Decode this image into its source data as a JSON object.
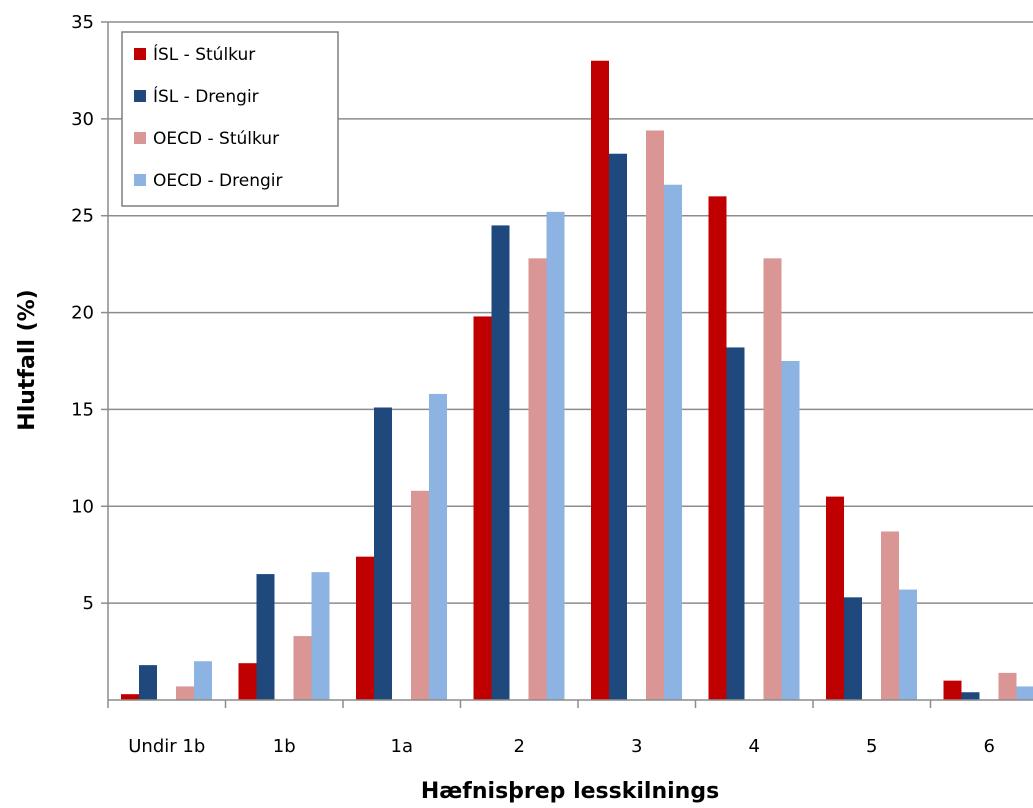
{
  "chart_data": {
    "type": "bar",
    "title": "",
    "xlabel": "Hæfnisþrep lesskilnings",
    "ylabel": "Hlutfall (%)",
    "ylim": [
      0,
      35
    ],
    "yticks": [
      5,
      10,
      15,
      20,
      25,
      30,
      35
    ],
    "grid": "horizontal",
    "legend_position": "top-left",
    "categories": [
      "Undir 1b",
      "1b",
      "1a",
      "2",
      "3",
      "4",
      "5",
      "6"
    ],
    "series": [
      {
        "name": "ÍSL - Stúlkur",
        "color": "#c00000",
        "values": [
          0.3,
          1.9,
          7.4,
          19.8,
          33.0,
          26.0,
          10.5,
          1.0
        ]
      },
      {
        "name": "ÍSL - Drengir",
        "color": "#1f497d",
        "values": [
          1.8,
          6.5,
          15.1,
          24.5,
          28.2,
          18.2,
          5.3,
          0.4
        ]
      },
      {
        "name": "OECD - Stúlkur",
        "color": "#d99694",
        "values": [
          0.7,
          3.3,
          10.8,
          22.8,
          29.4,
          22.8,
          8.7,
          1.4
        ]
      },
      {
        "name": "OECD - Drengir",
        "color": "#8db3e2",
        "values": [
          2.0,
          6.6,
          15.8,
          25.2,
          26.6,
          17.5,
          5.7,
          0.7
        ]
      }
    ]
  }
}
